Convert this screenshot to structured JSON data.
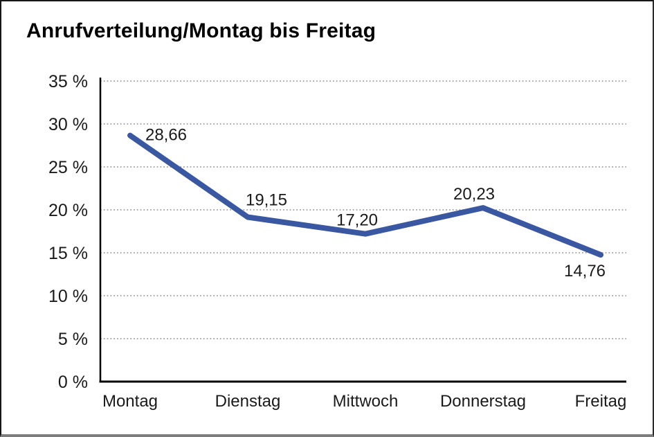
{
  "title": "Anrufverteilung/Montag bis Freitag",
  "colors": {
    "line": "#3A57A2",
    "grid": "#8F8F8F",
    "axis": "#000000",
    "text": "#1A1A1A",
    "frame_bottom": "#7D7D7D"
  },
  "chart_data": {
    "type": "line",
    "categories": [
      "Montag",
      "Dienstag",
      "Mittwoch",
      "Donnerstag",
      "Freitag"
    ],
    "values": [
      28.66,
      19.15,
      17.2,
      20.23,
      14.76
    ],
    "point_labels": [
      "28,66",
      "19,15",
      "17,20",
      "20,23",
      "14,76"
    ],
    "title": "Anrufverteilung/Montag bis Freitag",
    "xlabel": "",
    "ylabel": "",
    "ylim": [
      0,
      35
    ],
    "y_tick_step": 5,
    "y_tick_labels": [
      "0 %",
      "5 %",
      "10 %",
      "15 %",
      "20 %",
      "25 %",
      "30 %",
      "35 %"
    ],
    "grid": "horizontal-dotted",
    "legend": "none"
  }
}
